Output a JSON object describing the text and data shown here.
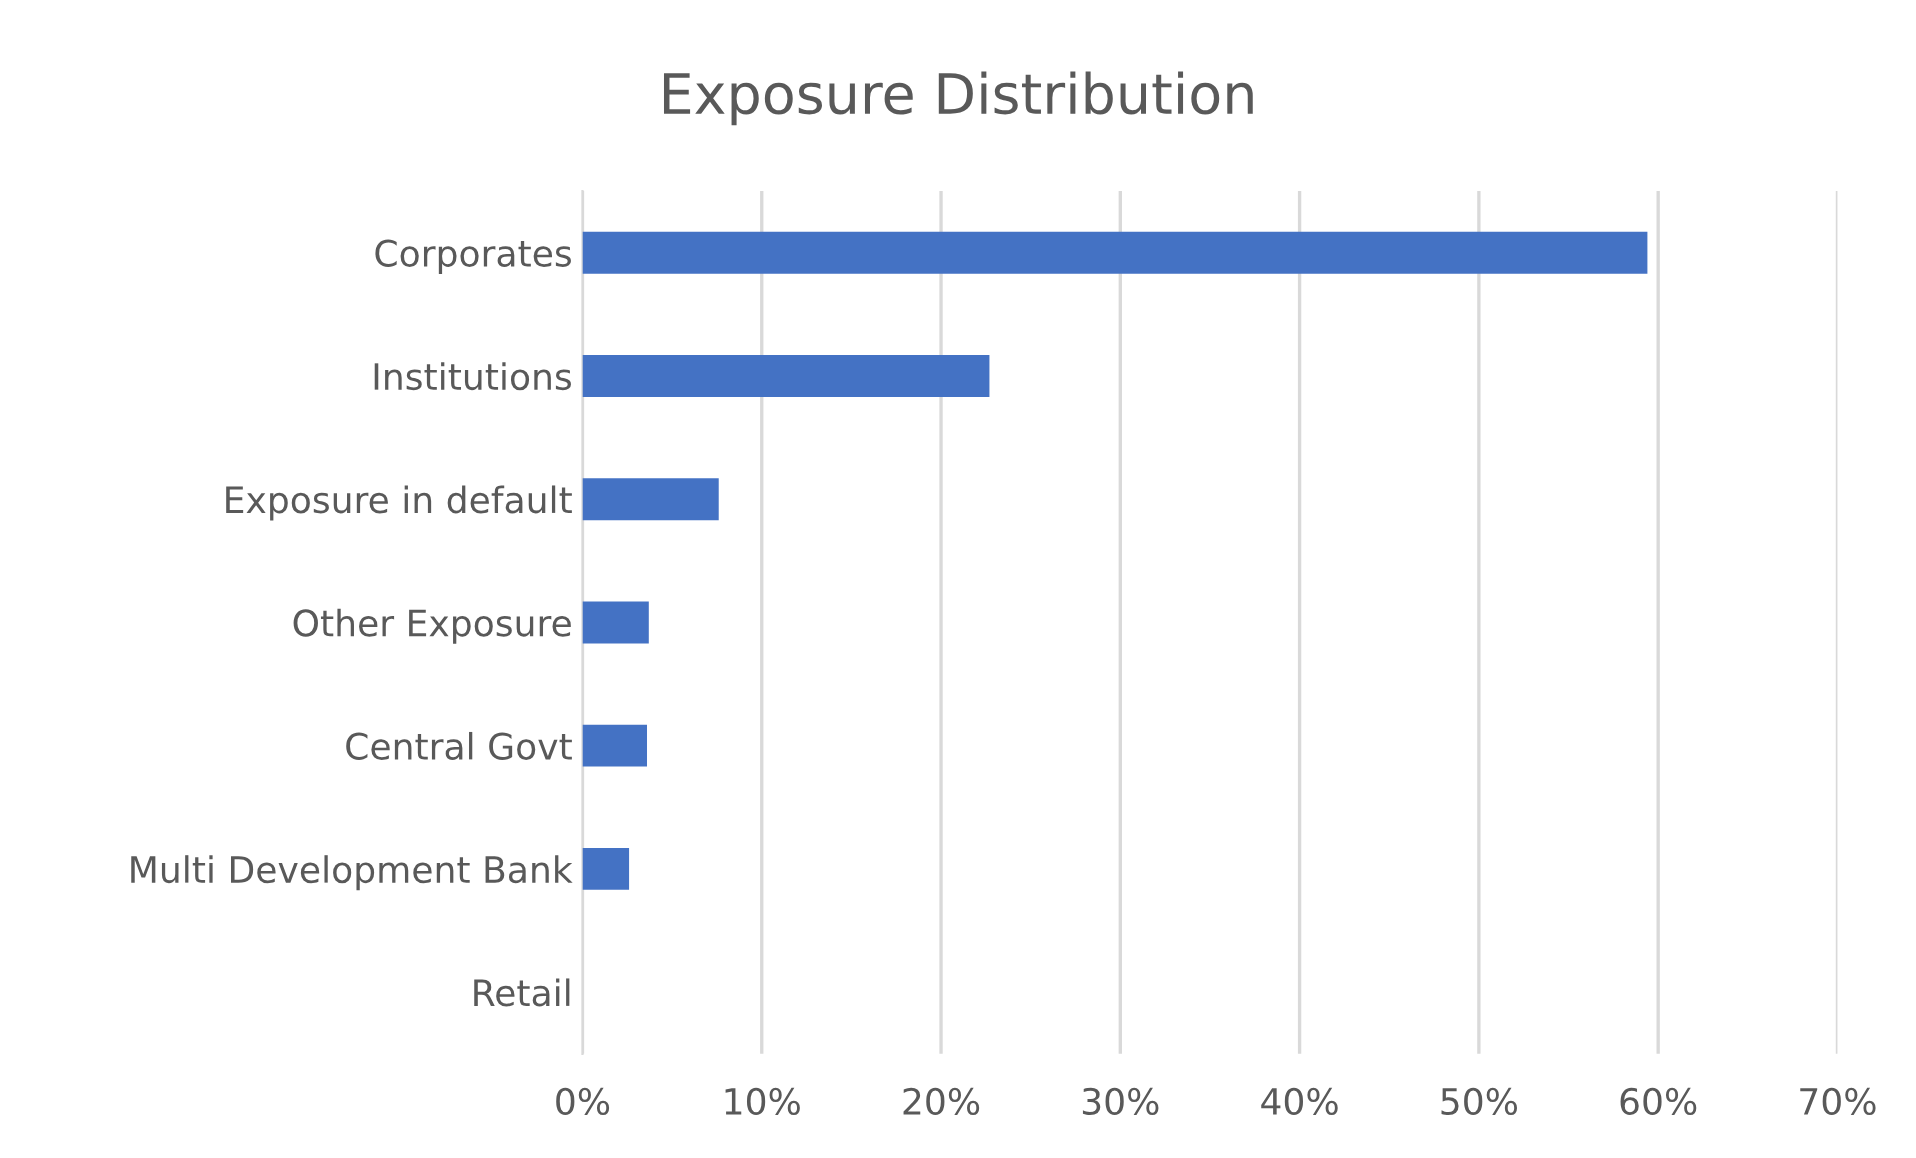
{
  "chart_data": {
    "type": "bar",
    "orientation": "horizontal",
    "title": "Exposure Distribution",
    "categories": [
      "Corporates",
      "Institutions",
      "Exposure in default",
      "Other Exposure",
      "Central Govt",
      "Multi Development Bank",
      "Retail"
    ],
    "values": [
      59.4,
      22.7,
      7.6,
      3.7,
      3.6,
      2.6,
      0
    ],
    "color": "#4472c4",
    "xlim": [
      0,
      70
    ],
    "xticks": [
      {
        "value": 0,
        "label": "0%"
      },
      {
        "value": 10,
        "label": "10%"
      },
      {
        "value": 20,
        "label": "20%"
      },
      {
        "value": 30,
        "label": "30%"
      },
      {
        "value": 40,
        "label": "40%"
      },
      {
        "value": 50,
        "label": "50%"
      },
      {
        "value": 60,
        "label": "60%"
      },
      {
        "value": 70,
        "label": "70%"
      }
    ],
    "grid": "x"
  }
}
